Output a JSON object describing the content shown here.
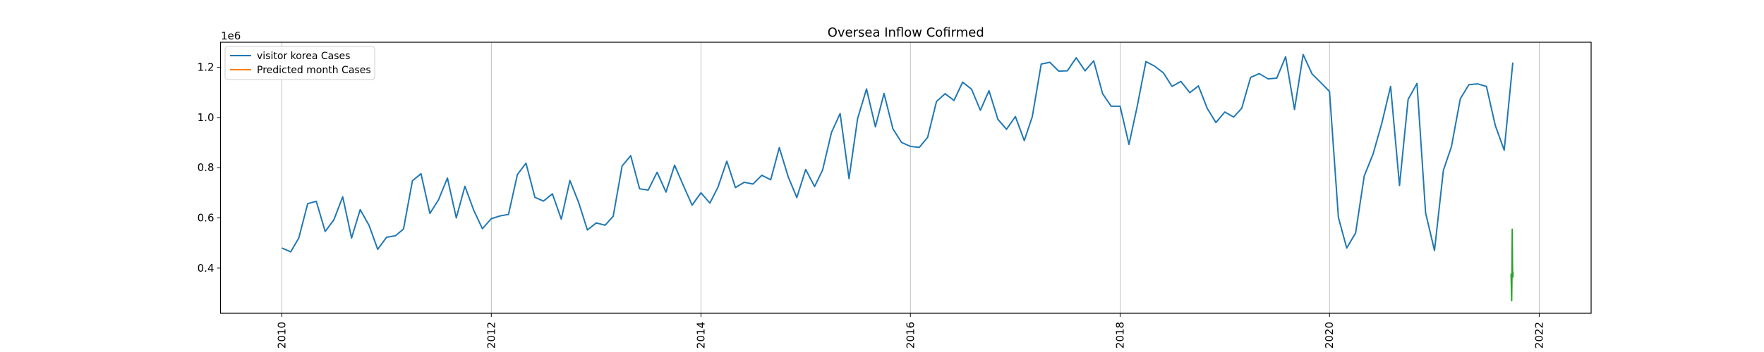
{
  "chart_data": {
    "type": "line",
    "title": "Oversea Inflow Cofirmed",
    "xlabel": "",
    "ylabel": "",
    "y_offset_label": "1e6",
    "xlim": [
      "2009-06-01",
      "2022-07-01"
    ],
    "ylim": [
      220000,
      1300000
    ],
    "x_ticks": [
      "2010",
      "2012",
      "2014",
      "2016",
      "2018",
      "2020",
      "2022"
    ],
    "x_tick_dates": [
      "2010-01-01",
      "2012-01-01",
      "2014-01-01",
      "2016-01-01",
      "2018-01-01",
      "2020-01-01",
      "2022-01-01"
    ],
    "y_ticks": [
      "0.4",
      "0.6",
      "0.8",
      "1.0",
      "1.2"
    ],
    "y_tick_values": [
      400000,
      600000,
      800000,
      1000000,
      1200000
    ],
    "grid": "vertical",
    "legend_position": "top-left",
    "series": [
      {
        "name": "visitor korea Cases",
        "color": "#1f77b4",
        "points": [
          [
            "2010-01-01",
            480000
          ],
          [
            "2010-02-01",
            465000
          ],
          [
            "2010-03-01",
            520000
          ],
          [
            "2010-04-01",
            657000
          ],
          [
            "2010-05-01",
            666000
          ],
          [
            "2010-06-01",
            546000
          ],
          [
            "2010-07-01",
            592000
          ],
          [
            "2010-08-01",
            684000
          ],
          [
            "2010-09-01",
            520000
          ],
          [
            "2010-10-01",
            633000
          ],
          [
            "2010-11-01",
            570000
          ],
          [
            "2010-12-01",
            475000
          ],
          [
            "2011-01-01",
            523000
          ],
          [
            "2011-02-01",
            529000
          ],
          [
            "2011-03-01",
            556000
          ],
          [
            "2011-04-01",
            748000
          ],
          [
            "2011-05-01",
            776000
          ],
          [
            "2011-06-01",
            618000
          ],
          [
            "2011-07-01",
            672000
          ],
          [
            "2011-08-01",
            759000
          ],
          [
            "2011-09-01",
            600000
          ],
          [
            "2011-10-01",
            726000
          ],
          [
            "2011-11-01",
            630000
          ],
          [
            "2011-12-01",
            557000
          ],
          [
            "2012-01-01",
            597000
          ],
          [
            "2012-02-01",
            608000
          ],
          [
            "2012-03-01",
            614000
          ],
          [
            "2012-04-01",
            773000
          ],
          [
            "2012-05-01",
            818000
          ],
          [
            "2012-06-01",
            682000
          ],
          [
            "2012-07-01",
            667000
          ],
          [
            "2012-08-01",
            696000
          ],
          [
            "2012-09-01",
            595000
          ],
          [
            "2012-10-01",
            749000
          ],
          [
            "2012-11-01",
            660000
          ],
          [
            "2012-12-01",
            552000
          ],
          [
            "2013-01-01",
            580000
          ],
          [
            "2013-02-01",
            571000
          ],
          [
            "2013-03-01",
            607000
          ],
          [
            "2013-04-01",
            807000
          ],
          [
            "2013-05-01",
            848000
          ],
          [
            "2013-06-01",
            716000
          ],
          [
            "2013-07-01",
            711000
          ],
          [
            "2013-08-01",
            782000
          ],
          [
            "2013-09-01",
            703000
          ],
          [
            "2013-10-01",
            810000
          ],
          [
            "2013-11-01",
            728000
          ],
          [
            "2013-12-01",
            651000
          ],
          [
            "2014-01-01",
            700000
          ],
          [
            "2014-02-01",
            659000
          ],
          [
            "2014-03-01",
            722000
          ],
          [
            "2014-04-01",
            826000
          ],
          [
            "2014-05-01",
            721000
          ],
          [
            "2014-06-01",
            742000
          ],
          [
            "2014-07-01",
            735000
          ],
          [
            "2014-08-01",
            770000
          ],
          [
            "2014-09-01",
            752000
          ],
          [
            "2014-10-01",
            880000
          ],
          [
            "2014-11-01",
            764000
          ],
          [
            "2014-12-01",
            681000
          ],
          [
            "2015-01-01",
            793000
          ],
          [
            "2015-02-01",
            725000
          ],
          [
            "2015-03-01",
            791000
          ],
          [
            "2015-04-01",
            941000
          ],
          [
            "2015-05-01",
            1016000
          ],
          [
            "2015-06-01",
            757000
          ],
          [
            "2015-07-01",
            996000
          ],
          [
            "2015-08-01",
            1114000
          ],
          [
            "2015-09-01",
            963000
          ],
          [
            "2015-10-01",
            1096000
          ],
          [
            "2015-11-01",
            955000
          ],
          [
            "2015-12-01",
            901000
          ],
          [
            "2016-01-01",
            885000
          ],
          [
            "2016-02-01",
            881000
          ],
          [
            "2016-03-01",
            921000
          ],
          [
            "2016-04-01",
            1064000
          ],
          [
            "2016-05-01",
            1095000
          ],
          [
            "2016-06-01",
            1068000
          ],
          [
            "2016-07-01",
            1141000
          ],
          [
            "2016-08-01",
            1113000
          ],
          [
            "2016-09-01",
            1029000
          ],
          [
            "2016-10-01",
            1107000
          ],
          [
            "2016-11-01",
            993000
          ],
          [
            "2016-12-01",
            953000
          ],
          [
            "2017-01-01",
            1004000
          ],
          [
            "2017-02-01",
            908000
          ],
          [
            "2017-03-01",
            1004000
          ],
          [
            "2017-04-01",
            1213000
          ],
          [
            "2017-05-01",
            1220000
          ],
          [
            "2017-06-01",
            1185000
          ],
          [
            "2017-07-01",
            1186000
          ],
          [
            "2017-08-01",
            1238000
          ],
          [
            "2017-09-01",
            1186000
          ],
          [
            "2017-10-01",
            1226000
          ],
          [
            "2017-11-01",
            1095000
          ],
          [
            "2017-12-01",
            1045000
          ],
          [
            "2018-01-01",
            1045000
          ],
          [
            "2018-02-01",
            893000
          ],
          [
            "2018-03-01",
            1041000
          ],
          [
            "2018-04-01",
            1223000
          ],
          [
            "2018-05-01",
            1205000
          ],
          [
            "2018-06-01",
            1178000
          ],
          [
            "2018-07-01",
            1124000
          ],
          [
            "2018-08-01",
            1144000
          ],
          [
            "2018-09-01",
            1099000
          ],
          [
            "2018-10-01",
            1126000
          ],
          [
            "2018-11-01",
            1036000
          ],
          [
            "2018-12-01",
            980000
          ],
          [
            "2019-01-01",
            1022000
          ],
          [
            "2019-02-01",
            1002000
          ],
          [
            "2019-03-01",
            1037000
          ],
          [
            "2019-04-01",
            1160000
          ],
          [
            "2019-05-01",
            1175000
          ],
          [
            "2019-06-01",
            1154000
          ],
          [
            "2019-07-01",
            1157000
          ],
          [
            "2019-08-01",
            1242000
          ],
          [
            "2019-09-01",
            1032000
          ],
          [
            "2019-10-01",
            1251000
          ],
          [
            "2019-11-01",
            1174000
          ],
          [
            "2019-12-01",
            1140000
          ],
          [
            "2020-01-01",
            1104000
          ],
          [
            "2020-02-01",
            602000
          ],
          [
            "2020-03-01",
            480000
          ],
          [
            "2020-04-01",
            540000
          ],
          [
            "2020-05-01",
            767000
          ],
          [
            "2020-06-01",
            855000
          ],
          [
            "2020-07-01",
            976000
          ],
          [
            "2020-08-01",
            1124000
          ],
          [
            "2020-09-01",
            729000
          ],
          [
            "2020-10-01",
            1072000
          ],
          [
            "2020-11-01",
            1136000
          ],
          [
            "2020-12-01",
            620000
          ],
          [
            "2021-01-01",
            470000
          ],
          [
            "2021-02-01",
            790000
          ],
          [
            "2021-03-01",
            884000
          ],
          [
            "2021-04-01",
            1075000
          ],
          [
            "2021-05-01",
            1131000
          ],
          [
            "2021-06-01",
            1134000
          ],
          [
            "2021-07-01",
            1124000
          ],
          [
            "2021-08-01",
            968000
          ],
          [
            "2021-09-01",
            870000
          ],
          [
            "2021-10-01",
            1219000
          ]
        ]
      },
      {
        "name": "Predicted month Cases",
        "color": "#ff7f0e",
        "points": []
      },
      {
        "color": "#2ca02c",
        "points": [
          [
            "2021-09-25",
            378000
          ],
          [
            "2021-09-27",
            270000
          ],
          [
            "2021-09-28",
            365000
          ],
          [
            "2021-09-29",
            555000
          ],
          [
            "2021-09-30",
            402000
          ],
          [
            "2021-10-01",
            364000
          ],
          [
            "2021-10-02",
            384000
          ]
        ]
      }
    ]
  }
}
